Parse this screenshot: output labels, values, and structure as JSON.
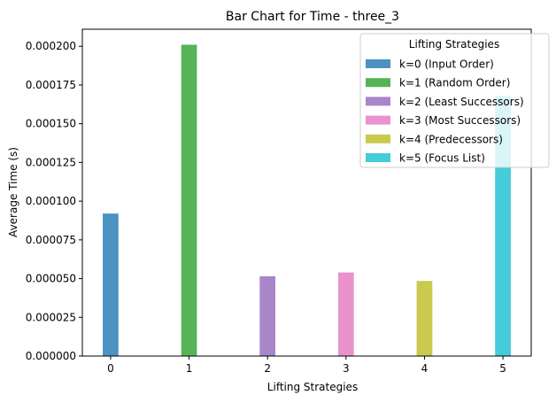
{
  "chart_data": {
    "type": "bar",
    "title": "Bar Chart for Time - three_3",
    "xlabel": "Lifting Strategies",
    "ylabel": "Average Time (s)",
    "categories": [
      "0",
      "1",
      "2",
      "3",
      "4",
      "5"
    ],
    "values": [
      9.2e-05,
      0.000201,
      5.15e-05,
      5.4e-05,
      4.85e-05,
      0.000168
    ],
    "colors": [
      "#1f77b4",
      "#2ca02c",
      "#9467bd",
      "#e377c2",
      "#bcbd22",
      "#17becf"
    ],
    "bar_opacity": 0.8,
    "ylim": [
      0,
      0.000211
    ],
    "yticks": [
      0,
      2.5e-05,
      5e-05,
      7.5e-05,
      0.0001,
      0.000125,
      0.00015,
      0.000175,
      0.0002
    ],
    "ytick_labels": [
      "0.000000",
      "0.000025",
      "0.000050",
      "0.000075",
      "0.000100",
      "0.000125",
      "0.000150",
      "0.000175",
      "0.000200"
    ],
    "grid": false,
    "legend": {
      "title": "Lifting Strategies",
      "placement": "top-right",
      "entries": [
        "k=0 (Input Order)",
        "k=1 (Random Order)",
        "k=2 (Least Successors)",
        "k=3 (Most Successors)",
        "k=4 (Predecessors)",
        "k=5 (Focus List)"
      ]
    }
  }
}
